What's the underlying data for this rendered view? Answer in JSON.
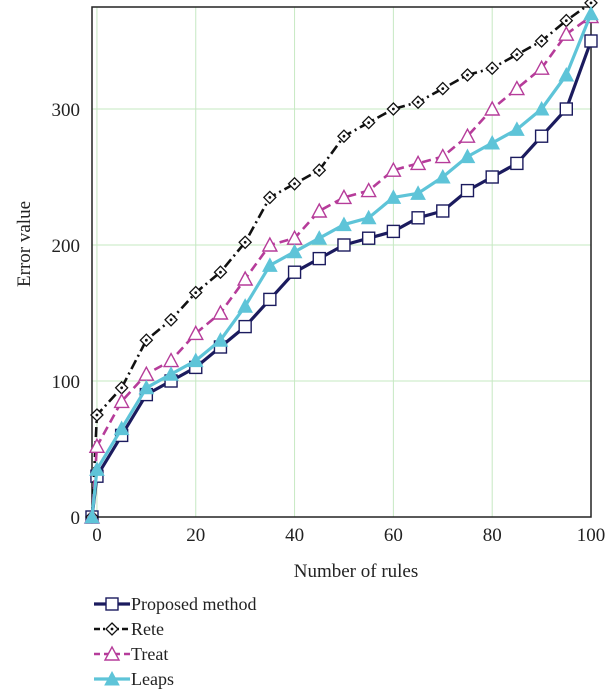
{
  "chart_data": {
    "type": "line",
    "title": "",
    "xlabel": "Number of rules",
    "ylabel": "Error value",
    "xlim": [
      -1,
      100
    ],
    "ylim": [
      0,
      375
    ],
    "xticks": [
      0,
      20,
      40,
      60,
      80,
      100
    ],
    "yticks": [
      0,
      100,
      200,
      300
    ],
    "xtick_labels": [
      "0",
      "20",
      "40",
      "60",
      "80",
      "100"
    ],
    "ytick_labels": [
      "0",
      "100",
      "200",
      "300"
    ],
    "grid": true,
    "legend_position": "bottom-left",
    "series": [
      {
        "name": "Proposed method",
        "color": "#1b1b5e",
        "line_style": "solid",
        "marker": "square",
        "x": [
          -1,
          0,
          5,
          10,
          15,
          20,
          25,
          30,
          35,
          40,
          45,
          50,
          55,
          60,
          65,
          70,
          75,
          80,
          85,
          90,
          95,
          100
        ],
        "y": [
          0,
          30,
          60,
          90,
          100,
          110,
          125,
          140,
          160,
          180,
          190,
          200,
          205,
          210,
          220,
          225,
          240,
          250,
          260,
          280,
          300,
          350
        ]
      },
      {
        "name": "Rete",
        "color": "#111111",
        "line_style": "dashdot",
        "marker": "diamond",
        "x": [
          -1,
          0,
          5,
          10,
          15,
          20,
          25,
          30,
          35,
          40,
          45,
          50,
          55,
          60,
          65,
          70,
          75,
          80,
          85,
          90,
          95,
          100
        ],
        "y": [
          0,
          75,
          95,
          130,
          145,
          165,
          180,
          202,
          235,
          245,
          255,
          280,
          290,
          300,
          305,
          315,
          325,
          330,
          340,
          350,
          365,
          378
        ]
      },
      {
        "name": "Treat",
        "color": "#b63c9a",
        "line_style": "dashed",
        "marker": "triangle-open",
        "x": [
          -1,
          0,
          5,
          10,
          15,
          20,
          25,
          30,
          35,
          40,
          45,
          50,
          55,
          60,
          65,
          70,
          75,
          80,
          85,
          90,
          95,
          100
        ],
        "y": [
          0,
          52,
          85,
          105,
          115,
          135,
          150,
          175,
          200,
          205,
          225,
          235,
          240,
          255,
          260,
          265,
          280,
          300,
          315,
          330,
          355,
          368
        ]
      },
      {
        "name": "Leaps",
        "color": "#5ec4d8",
        "line_style": "solid",
        "marker": "triangle-filled",
        "x": [
          -1,
          0,
          5,
          10,
          15,
          20,
          25,
          30,
          35,
          40,
          45,
          50,
          55,
          60,
          65,
          70,
          75,
          80,
          85,
          90,
          95,
          100
        ],
        "y": [
          0,
          35,
          65,
          95,
          105,
          115,
          130,
          155,
          185,
          195,
          205,
          215,
          220,
          235,
          238,
          250,
          265,
          275,
          285,
          300,
          325,
          370
        ]
      }
    ]
  }
}
